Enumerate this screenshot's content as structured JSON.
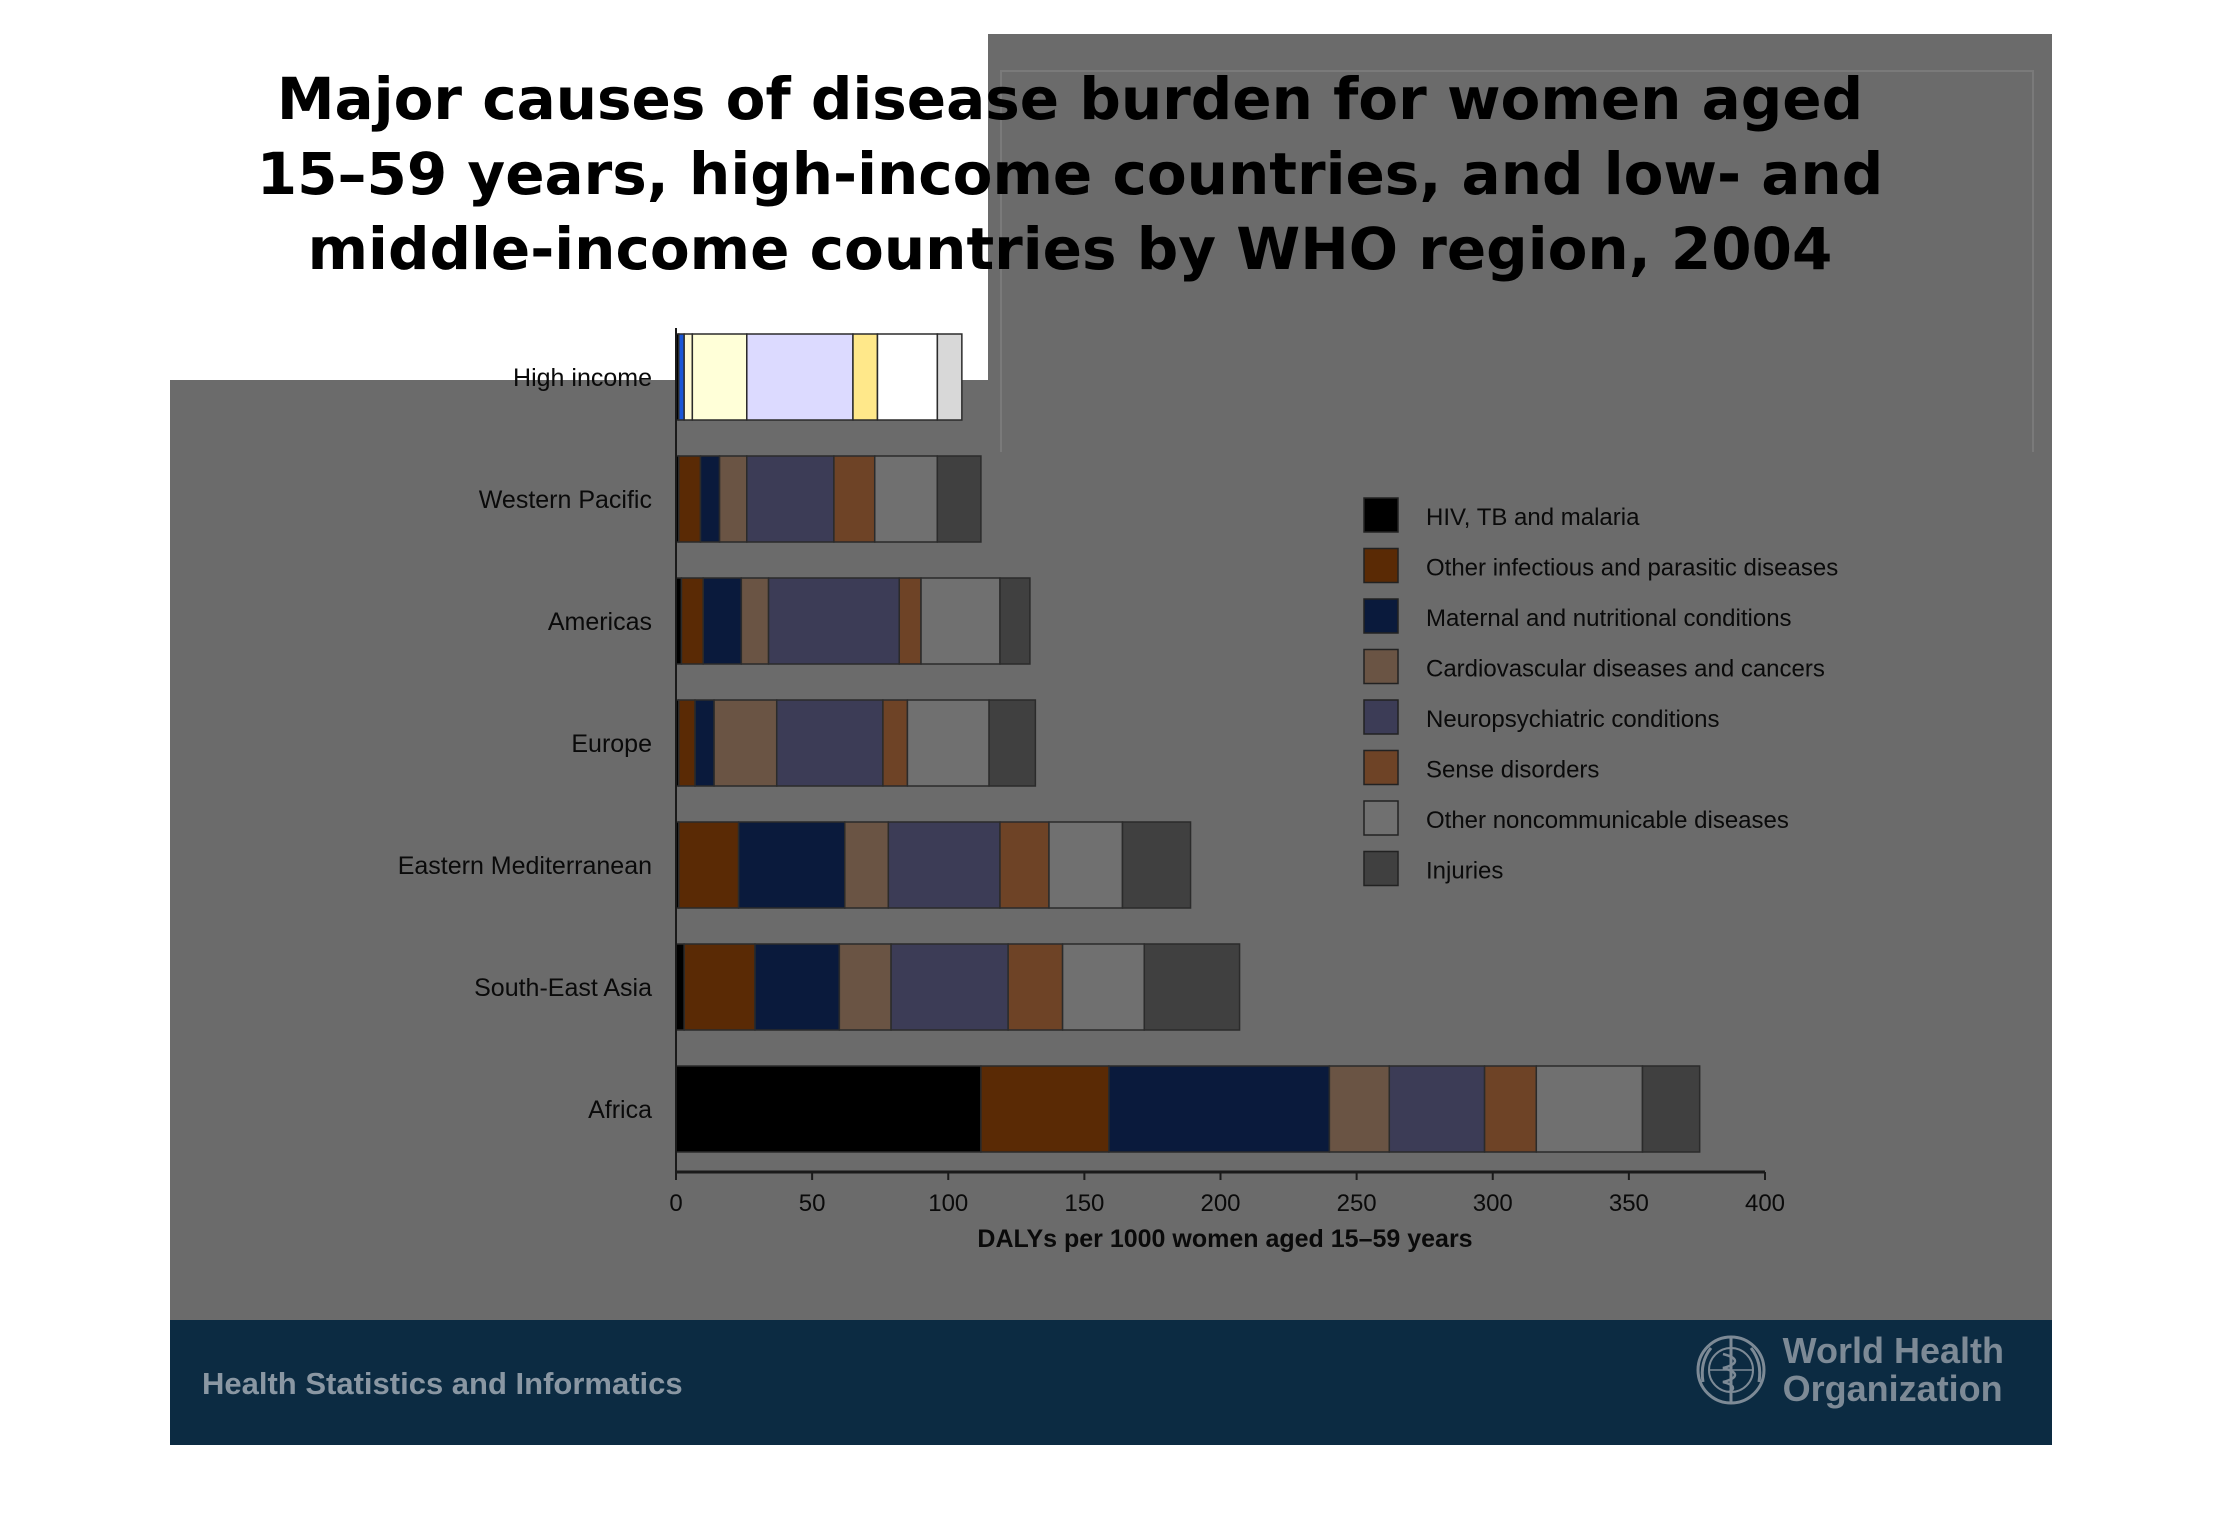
{
  "title": "Major causes of disease burden for women aged 15–59 years, high-income countries, and low- and middle-income countries by WHO region, 2004",
  "footer": {
    "left_text": "Health Statistics and Informatics",
    "logo_line1": "World Health",
    "logo_line2": "Organization",
    "logo_icon": "who-emblem-icon"
  },
  "colors": {
    "slide_background": "#6b6b6b",
    "footer_background": "#0c2b42"
  },
  "chart_data": {
    "type": "bar",
    "orientation": "horizontal",
    "stacked": true,
    "title": "",
    "xlabel": "DALYs per 1000 women aged 15–59 years",
    "ylabel": "",
    "xlim": [
      0,
      400
    ],
    "xticks": [
      0,
      50,
      100,
      150,
      200,
      250,
      300,
      350,
      400
    ],
    "grid": false,
    "legend_position": "right",
    "categories": [
      "High income",
      "Western Pacific",
      "Americas",
      "Europe",
      "Eastern Mediterranean",
      "South-East Asia",
      "Africa"
    ],
    "series": [
      {
        "name": "HIV, TB and malaria",
        "color": "#000000",
        "values": [
          1,
          1,
          2,
          1,
          1,
          3,
          112
        ]
      },
      {
        "name": "Other infectious and parasitic diseases",
        "color": "#5a2a05",
        "values": [
          2,
          8,
          8,
          6,
          22,
          26,
          47
        ]
      },
      {
        "name": "Maternal and nutritional conditions",
        "color": "#0a1a3c",
        "values": [
          3,
          7,
          14,
          7,
          39,
          31,
          81
        ]
      },
      {
        "name": "Cardiovascular diseases and cancers",
        "color": "#6a5444",
        "values": [
          20,
          10,
          10,
          23,
          16,
          19,
          22
        ]
      },
      {
        "name": "Neuropsychiatric conditions",
        "color": "#3c3c56",
        "values": [
          39,
          32,
          48,
          39,
          41,
          43,
          35
        ]
      },
      {
        "name": "Sense disorders",
        "color": "#6e4326",
        "values": [
          9,
          15,
          8,
          9,
          18,
          20,
          19
        ]
      },
      {
        "name": "Other noncommunicable diseases",
        "color": "#707070",
        "values": [
          22,
          23,
          29,
          30,
          27,
          30,
          39
        ]
      },
      {
        "name": "Injuries",
        "color": "#404040",
        "values": [
          9,
          16,
          11,
          17,
          25,
          35,
          21
        ]
      }
    ],
    "high_income_overlay_colors": [
      "#000000",
      "#1a56d6",
      "#fffbd6",
      "#ffffd8",
      "#dcdaff",
      "#ffe88a",
      "#ffffff",
      "#d8d8d8"
    ]
  }
}
